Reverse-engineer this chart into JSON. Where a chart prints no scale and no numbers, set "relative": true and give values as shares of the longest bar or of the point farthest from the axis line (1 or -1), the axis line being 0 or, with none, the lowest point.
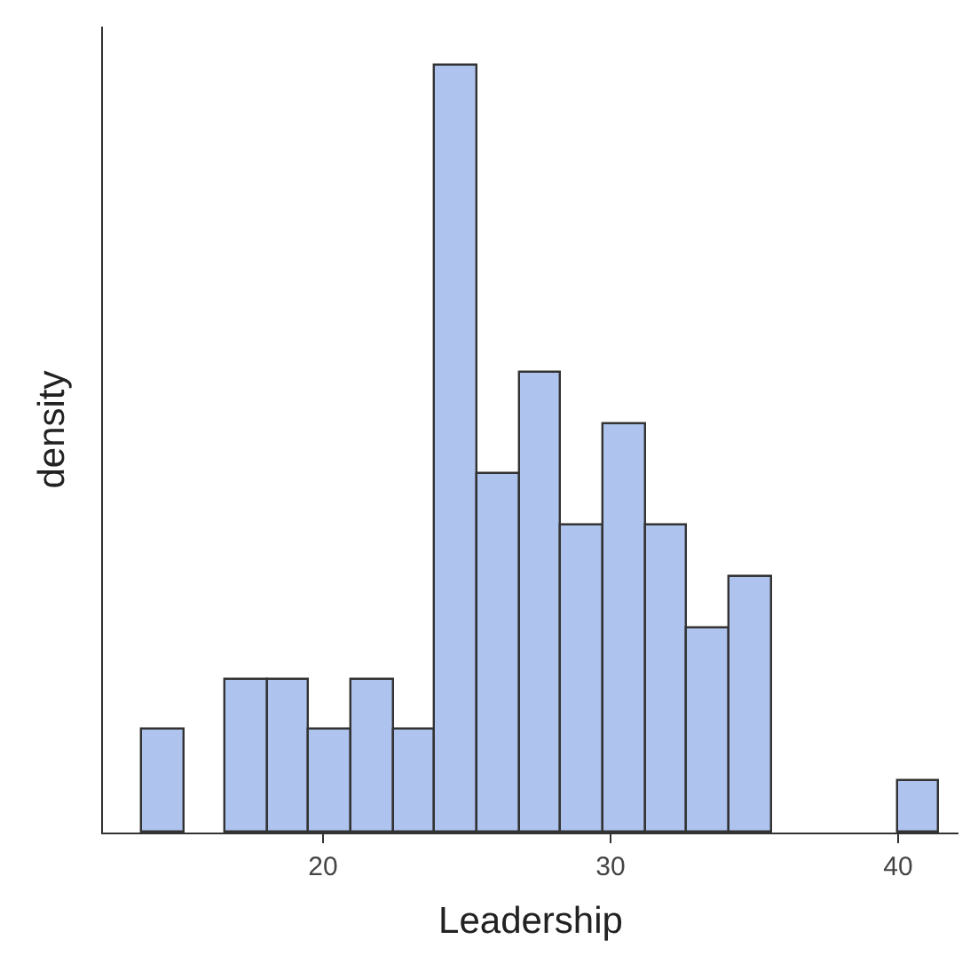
{
  "chart_data": {
    "type": "bar",
    "xlabel": "Leadership",
    "ylabel": "density",
    "relative": true,
    "x": [
      14.43,
      15.89,
      17.35,
      18.81,
      20.27,
      21.73,
      23.19,
      24.65,
      26.11,
      27.57,
      29.03,
      30.49,
      31.95,
      33.41,
      34.87,
      36.33,
      37.79,
      39.25,
      40.71
    ],
    "values": [
      0.133,
      0,
      0.2,
      0.2,
      0.133,
      0.2,
      0.133,
      1,
      0.467,
      0.6,
      0.4,
      0.533,
      0.4,
      0.267,
      0.333,
      0,
      0,
      0,
      0.067
    ],
    "color": "#aec3ee",
    "xlim": [
      12.35,
      42.1
    ],
    "xticks": [
      20,
      30,
      40
    ],
    "grid": false
  }
}
